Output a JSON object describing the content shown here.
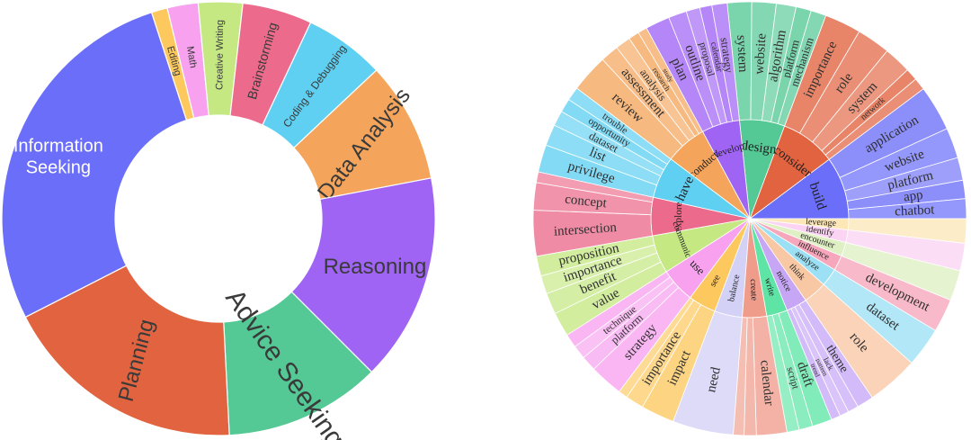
{
  "chart_data": [
    {
      "type": "pie",
      "subtype": "donut",
      "title": "",
      "start_angle_deg": -18,
      "slices": [
        {
          "label": "Editing",
          "value": 1.2,
          "color": "#fdc95f",
          "text_color": "#3a3a3a"
        },
        {
          "label": "Math",
          "value": 2.3,
          "color": "#f7a1ef",
          "text_color": "#3a3a3a"
        },
        {
          "label": "Creative Writing",
          "value": 3.3,
          "color": "#c5e883",
          "text_color": "#3a3a3a"
        },
        {
          "label": "Brainstorming",
          "value": 5.2,
          "color": "#ec6a8b",
          "text_color": "#3a3a3a"
        },
        {
          "label": "Coding & Debugging",
          "value": 6.0,
          "color": "#5fd0f1",
          "text_color": "#3a3a3a"
        },
        {
          "label": "Data Analysis",
          "value": 9.0,
          "color": "#f4a55b",
          "text_color": "#3a3a3a"
        },
        {
          "label": "Reasoning",
          "value": 15.5,
          "color": "#a064f5",
          "text_color": "#3a3a3a"
        },
        {
          "label": "Advice Seeking",
          "value": 11.7,
          "color": "#54c895",
          "text_color": "#3a3a3a"
        },
        {
          "label": "Planning",
          "value": 18.3,
          "color": "#e2633f",
          "text_color": "#3a3a3a"
        },
        {
          "label": "Information Seeking",
          "value": 27.5,
          "color": "#6b6ef9",
          "text_color": "#ffffff"
        }
      ]
    },
    {
      "type": "sunburst",
      "title": "",
      "inner": [
        {
          "label": "build",
          "value": 9,
          "color": "#6b6ef9",
          "children": [
            {
              "label": "application",
              "value": 3
            },
            {
              "label": "website",
              "value": 2
            },
            {
              "label": "platform",
              "value": 1.5
            },
            {
              "label": "app",
              "value": 1.2
            },
            {
              "label": "chatbot",
              "value": 1.3
            }
          ]
        },
        {
          "label": "consider",
          "value": 8,
          "color": "#e2633f",
          "children": [
            {
              "label": "importance",
              "value": 2.4
            },
            {
              "label": "role",
              "value": 2.2
            },
            {
              "label": "system",
              "value": 1.8
            },
            {
              "label": "network",
              "value": 0.8
            },
            {
              "label": "",
              "value": 0.8
            }
          ]
        },
        {
          "label": "design",
          "value": 6.5,
          "color": "#54c895",
          "children": [
            {
              "label": "system",
              "value": 1.6
            },
            {
              "label": "website",
              "value": 1.6
            },
            {
              "label": "algorithm",
              "value": 1.3
            },
            {
              "label": "platform",
              "value": 1
            },
            {
              "label": "mechanism",
              "value": 1
            }
          ]
        },
        {
          "label": "develop",
          "value": 5.5,
          "color": "#a064f5",
          "children": [
            {
              "label": "plan",
              "value": 1.6
            },
            {
              "label": "outline",
              "value": 1.2
            },
            {
              "label": "proposal",
              "value": 0.9
            },
            {
              "label": "calendar",
              "value": 0.8
            },
            {
              "label": "strategy",
              "value": 1
            }
          ]
        },
        {
          "label": "conduct",
          "value": 6,
          "color": "#f4a55b",
          "children": [
            {
              "label": "review",
              "value": 2.5
            },
            {
              "label": "assessment",
              "value": 1.2
            },
            {
              "label": "analysis",
              "value": 1
            },
            {
              "label": "research",
              "value": 0.7
            },
            {
              "label": "study",
              "value": 0.6
            }
          ]
        },
        {
          "label": "have",
          "value": 6,
          "color": "#5fd0f1",
          "children": [
            {
              "label": "privilege",
              "value": 1.8
            },
            {
              "label": "list",
              "value": 1.4
            },
            {
              "label": "dataset",
              "value": 1
            },
            {
              "label": "opportunity",
              "value": 0.9
            },
            {
              "label": "trouble",
              "value": 0.9
            }
          ]
        },
        {
          "label": "explore",
          "value": 5.5,
          "color": "#ec6a8b",
          "children": [
            {
              "label": "intersection",
              "value": 3
            },
            {
              "label": "concept",
              "value": 1.8
            },
            {
              "label": "",
              "value": 0.7
            }
          ]
        },
        {
          "label": "communicate",
          "value": 5.5,
          "color": "#c5e883",
          "children": [
            {
              "label": "value",
              "value": 1.6
            },
            {
              "label": "benefit",
              "value": 1.4
            },
            {
              "label": "importance",
              "value": 1.2
            },
            {
              "label": "proposition",
              "value": 1.3
            }
          ]
        },
        {
          "label": "use",
          "value": 5,
          "color": "#f7a1ef",
          "children": [
            {
              "label": "strategy",
              "value": 2.2
            },
            {
              "label": "platform",
              "value": 1
            },
            {
              "label": "technique",
              "value": 0.9
            },
            {
              "label": "",
              "value": 0.9
            }
          ]
        },
        {
          "label": "see",
          "value": 4,
          "color": "#fdc95f",
          "children": [
            {
              "label": "impact",
              "value": 2.2
            },
            {
              "label": "importance",
              "value": 1.2
            },
            {
              "label": "",
              "value": 0.6
            }
          ]
        },
        {
          "label": "balance",
          "value": 4,
          "color": "#d3d1f6",
          "children": [
            {
              "label": "need",
              "value": 4
            }
          ]
        },
        {
          "label": "create",
          "value": 3.5,
          "color": "#ef9c8b",
          "children": [
            {
              "label": "calendar",
              "value": 2
            },
            {
              "label": "",
              "value": 0.8
            },
            {
              "label": "",
              "value": 0.7
            }
          ]
        },
        {
          "label": "write",
          "value": 3,
          "color": "#5ee5a6",
          "children": [
            {
              "label": "draft",
              "value": 1.3
            },
            {
              "label": "script",
              "value": 0.9
            },
            {
              "label": "",
              "value": 0.8
            }
          ]
        },
        {
          "label": "notice",
          "value": 3,
          "color": "#c7a6f6",
          "children": [
            {
              "label": "theme",
              "value": 1.1
            },
            {
              "label": "lack",
              "value": 0.7
            },
            {
              "label": "pattern",
              "value": 0.6
            },
            {
              "label": "trend",
              "value": 0.6
            }
          ]
        },
        {
          "label": "think",
          "value": 3.4,
          "color": "#f8c7a4",
          "children": [
            {
              "label": "role",
              "value": 3.4
            }
          ]
        },
        {
          "label": "analyze",
          "value": 2.6,
          "color": "#9be0f4",
          "children": [
            {
              "label": "dataset",
              "value": 2.6
            }
          ]
        },
        {
          "label": "influence",
          "value": 2.2,
          "color": "#f6a7bb",
          "children": [
            {
              "label": "development",
              "value": 2.2
            }
          ]
        },
        {
          "label": "encounter",
          "value": 2,
          "color": "#dff0c4",
          "children": [
            {
              "label": "",
              "value": 2
            }
          ]
        },
        {
          "label": "identify",
          "value": 1.8,
          "color": "#fbd3f3",
          "children": [
            {
              "label": "",
              "value": 1.8
            }
          ]
        },
        {
          "label": "leverage",
          "value": 1.6,
          "color": "#fde7b8",
          "children": [
            {
              "label": "",
              "value": 1.6
            }
          ]
        }
      ]
    }
  ]
}
